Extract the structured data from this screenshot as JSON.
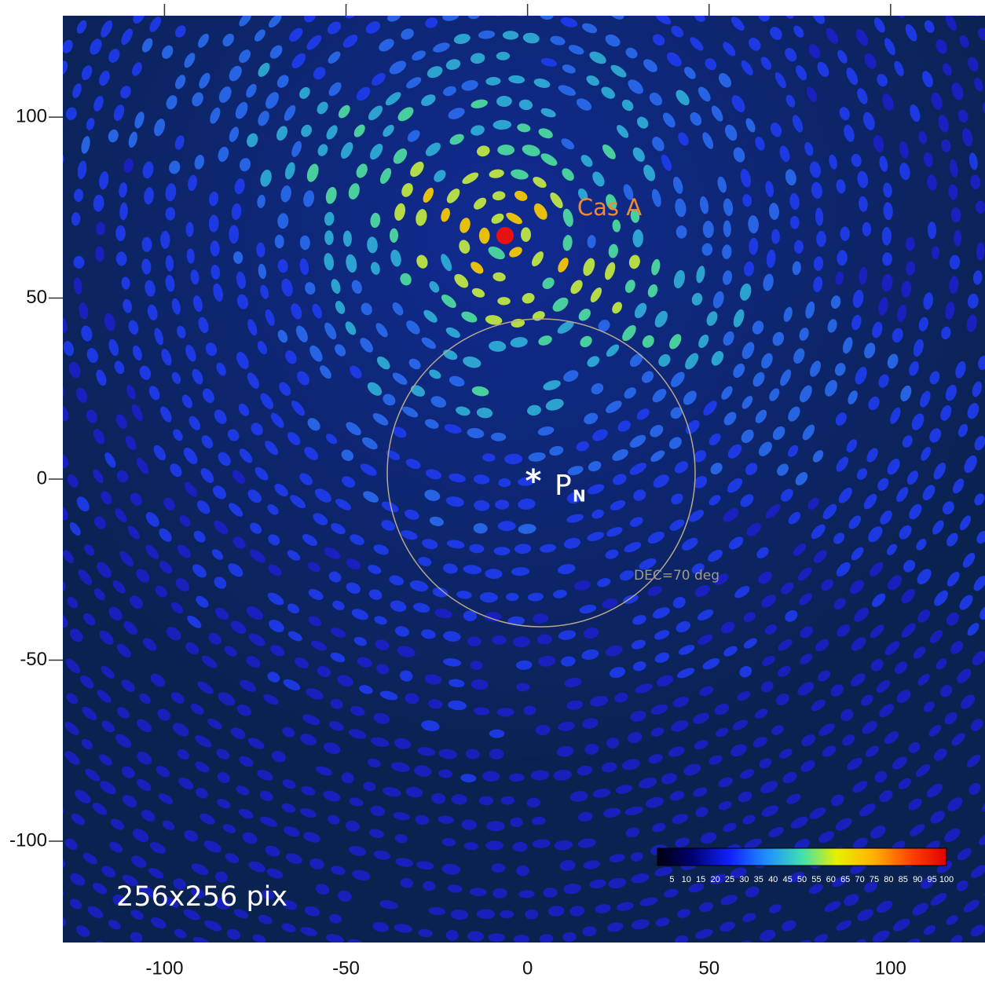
{
  "chart_data": {
    "type": "image",
    "xlim": [
      -128,
      126
    ],
    "ylim": [
      -128,
      128
    ],
    "xticks": [
      -100,
      -50,
      0,
      50,
      100
    ],
    "yticks": [
      -100,
      -50,
      0,
      50,
      100
    ],
    "annotations": {
      "source": "Cas A",
      "marker": "*",
      "pole": "P",
      "pole_subscript": "N",
      "circle_label": "DEC=70 deg",
      "size_label": "256x256 pix"
    },
    "colorbar": {
      "lim": [
        0,
        100
      ],
      "ticks": [
        5,
        10,
        15,
        20,
        25,
        30,
        35,
        40,
        45,
        50,
        55,
        60,
        65,
        70,
        75,
        80,
        85,
        90,
        95,
        100
      ]
    }
  }
}
